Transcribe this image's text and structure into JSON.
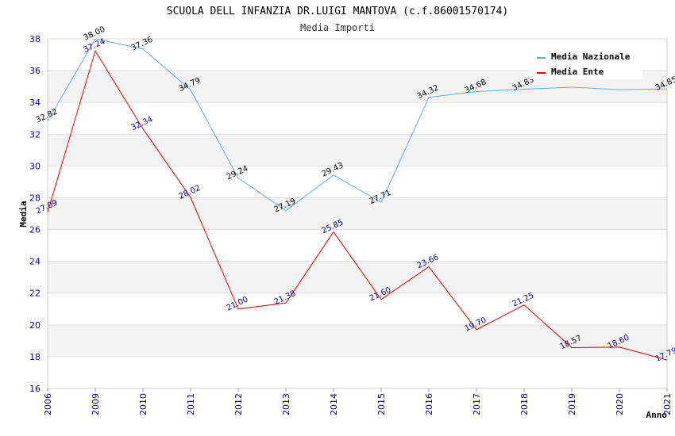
{
  "chart_data": {
    "type": "line",
    "title": "SCUOLA DELL INFANZIA DR.LUIGI MANTOVA (c.f.86001570174)",
    "subtitle": "Media Importi",
    "xlabel": "Anno",
    "ylabel": "Media",
    "categories": [
      "2006",
      "2009",
      "2010",
      "2011",
      "2012",
      "2013",
      "2014",
      "2015",
      "2016",
      "2017",
      "2018",
      "2019",
      "2020",
      "2021"
    ],
    "ylim": [
      16,
      38
    ],
    "yticks": [
      "16",
      "18",
      "20",
      "22",
      "24",
      "26",
      "28",
      "30",
      "32",
      "34",
      "36",
      "38"
    ],
    "grid": "horizontal bands",
    "legend_position": "top-right",
    "series": [
      {
        "name": "Media Nazionale",
        "color": "#66aaee",
        "label_color": "#000000",
        "values": [
          32.82,
          38.0,
          37.36,
          34.79,
          29.24,
          27.19,
          29.43,
          27.71,
          34.32,
          34.68,
          34.83,
          34.96,
          34.8,
          34.85
        ],
        "labels": [
          "32.82",
          "38.00",
          "37.36",
          "34.79",
          "29.24",
          "27.19",
          "29.43",
          "27.71",
          "34.32",
          "34.68",
          "34.83",
          "",
          "",
          "34.85"
        ]
      },
      {
        "name": "Media Ente",
        "color": "#ee0000",
        "label_color": "#000088",
        "values": [
          27.09,
          37.24,
          32.34,
          28.02,
          21.0,
          21.38,
          25.85,
          21.6,
          23.66,
          19.7,
          21.25,
          18.57,
          18.6,
          17.79
        ],
        "labels": [
          "27.09",
          "37.24",
          "32.34",
          "28.02",
          "21.00",
          "21.38",
          "25.85",
          "21.60",
          "23.66",
          "19.70",
          "21.25",
          "18.57",
          "18.60",
          "17.79"
        ]
      }
    ]
  }
}
